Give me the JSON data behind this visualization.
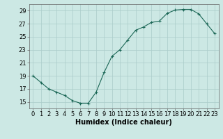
{
  "x": [
    0,
    1,
    2,
    3,
    4,
    5,
    6,
    7,
    8,
    9,
    10,
    11,
    12,
    13,
    14,
    15,
    16,
    17,
    18,
    19,
    20,
    21,
    22,
    23
  ],
  "y": [
    19,
    18,
    17,
    16.5,
    16,
    15.2,
    14.8,
    14.8,
    16.5,
    19.5,
    22,
    23,
    24.5,
    26,
    26.5,
    27.2,
    27.4,
    28.6,
    29.1,
    29.2,
    29.2,
    28.5,
    27,
    25.5
  ],
  "line_color": "#1a6655",
  "marker": "+",
  "bg_color": "#cce8e4",
  "grid_color": "#aaccca",
  "xlabel": "Humidex (Indice chaleur)",
  "xlim": [
    -0.5,
    23.5
  ],
  "ylim": [
    14.0,
    30.0
  ],
  "yticks": [
    15,
    17,
    19,
    21,
    23,
    25,
    27,
    29
  ],
  "xticks": [
    0,
    1,
    2,
    3,
    4,
    5,
    6,
    7,
    8,
    9,
    10,
    11,
    12,
    13,
    14,
    15,
    16,
    17,
    18,
    19,
    20,
    21,
    22,
    23
  ],
  "label_fontsize": 7,
  "tick_fontsize": 6
}
